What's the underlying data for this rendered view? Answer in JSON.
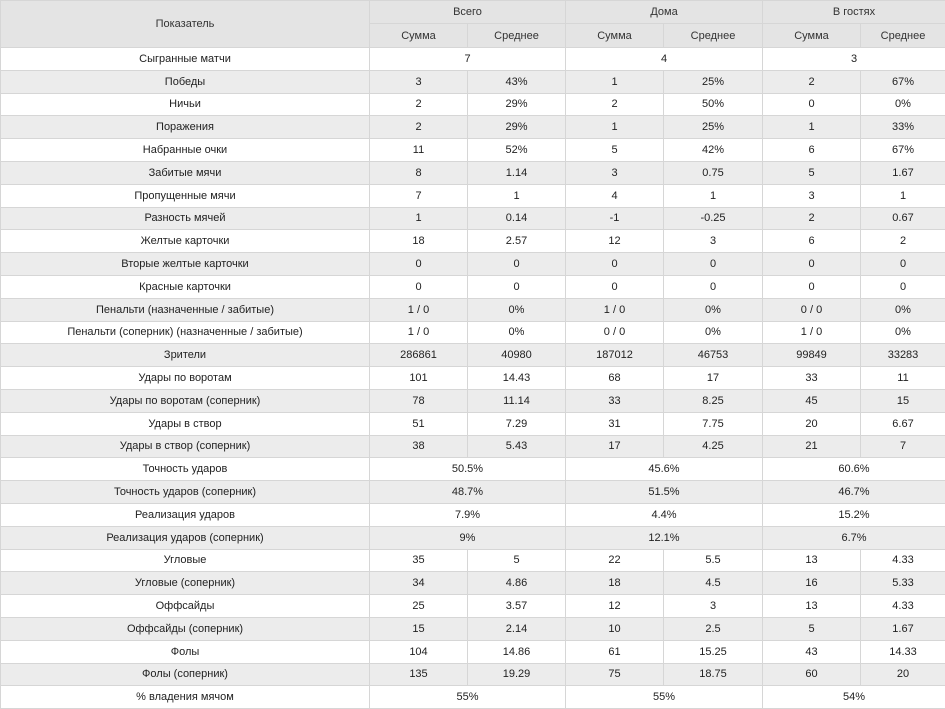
{
  "header": {
    "indicator": "Показатель",
    "groups": [
      "Всего",
      "Дома",
      "В гостях"
    ],
    "sub": [
      "Сумма",
      "Среднее"
    ]
  },
  "rows": [
    {
      "label": "Сыгранные матчи",
      "merged": true,
      "values": [
        "7",
        "4",
        "3"
      ]
    },
    {
      "label": "Победы",
      "values": [
        "3",
        "43%",
        "1",
        "25%",
        "2",
        "67%"
      ]
    },
    {
      "label": "Ничьи",
      "values": [
        "2",
        "29%",
        "2",
        "50%",
        "0",
        "0%"
      ]
    },
    {
      "label": "Поражения",
      "values": [
        "2",
        "29%",
        "1",
        "25%",
        "1",
        "33%"
      ]
    },
    {
      "label": "Набранные очки",
      "values": [
        "11",
        "52%",
        "5",
        "42%",
        "6",
        "67%"
      ]
    },
    {
      "label": "Забитые мячи",
      "values": [
        "8",
        "1.14",
        "3",
        "0.75",
        "5",
        "1.67"
      ]
    },
    {
      "label": "Пропущенные мячи",
      "values": [
        "7",
        "1",
        "4",
        "1",
        "3",
        "1"
      ]
    },
    {
      "label": "Разность мячей",
      "values": [
        "1",
        "0.14",
        "-1",
        "-0.25",
        "2",
        "0.67"
      ]
    },
    {
      "label": "Желтые карточки",
      "values": [
        "18",
        "2.57",
        "12",
        "3",
        "6",
        "2"
      ]
    },
    {
      "label": "Вторые желтые карточки",
      "values": [
        "0",
        "0",
        "0",
        "0",
        "0",
        "0"
      ]
    },
    {
      "label": "Красные карточки",
      "values": [
        "0",
        "0",
        "0",
        "0",
        "0",
        "0"
      ]
    },
    {
      "label": "Пенальти (назначенные / забитые)",
      "values": [
        "1 / 0",
        "0%",
        "1 / 0",
        "0%",
        "0 / 0",
        "0%"
      ]
    },
    {
      "label": "Пенальти (соперник) (назначенные / забитые)",
      "values": [
        "1 / 0",
        "0%",
        "0 / 0",
        "0%",
        "1 / 0",
        "0%"
      ]
    },
    {
      "label": "Зрители",
      "values": [
        "286861",
        "40980",
        "187012",
        "46753",
        "99849",
        "33283"
      ]
    },
    {
      "label": "Удары по воротам",
      "values": [
        "101",
        "14.43",
        "68",
        "17",
        "33",
        "11"
      ]
    },
    {
      "label": "Удары по воротам (соперник)",
      "values": [
        "78",
        "11.14",
        "33",
        "8.25",
        "45",
        "15"
      ]
    },
    {
      "label": "Удары в створ",
      "values": [
        "51",
        "7.29",
        "31",
        "7.75",
        "20",
        "6.67"
      ]
    },
    {
      "label": "Удары в створ (соперник)",
      "values": [
        "38",
        "5.43",
        "17",
        "4.25",
        "21",
        "7"
      ]
    },
    {
      "label": "Точность ударов",
      "merged": true,
      "values": [
        "50.5%",
        "45.6%",
        "60.6%"
      ]
    },
    {
      "label": "Точность ударов (соперник)",
      "merged": true,
      "values": [
        "48.7%",
        "51.5%",
        "46.7%"
      ]
    },
    {
      "label": "Реализация ударов",
      "merged": true,
      "values": [
        "7.9%",
        "4.4%",
        "15.2%"
      ]
    },
    {
      "label": "Реализация ударов (соперник)",
      "merged": true,
      "values": [
        "9%",
        "12.1%",
        "6.7%"
      ]
    },
    {
      "label": "Угловые",
      "values": [
        "35",
        "5",
        "22",
        "5.5",
        "13",
        "4.33"
      ]
    },
    {
      "label": "Угловые (соперник)",
      "values": [
        "34",
        "4.86",
        "18",
        "4.5",
        "16",
        "5.33"
      ]
    },
    {
      "label": "Оффсайды",
      "values": [
        "25",
        "3.57",
        "12",
        "3",
        "13",
        "4.33"
      ]
    },
    {
      "label": "Оффсайды (соперник)",
      "values": [
        "15",
        "2.14",
        "10",
        "2.5",
        "5",
        "1.67"
      ]
    },
    {
      "label": "Фолы",
      "values": [
        "104",
        "14.86",
        "61",
        "15.25",
        "43",
        "14.33"
      ]
    },
    {
      "label": "Фолы (соперник)",
      "values": [
        "135",
        "19.29",
        "75",
        "18.75",
        "60",
        "20"
      ]
    },
    {
      "label": "% владения мячом",
      "merged": true,
      "values": [
        "55%",
        "55%",
        "54%"
      ]
    }
  ]
}
